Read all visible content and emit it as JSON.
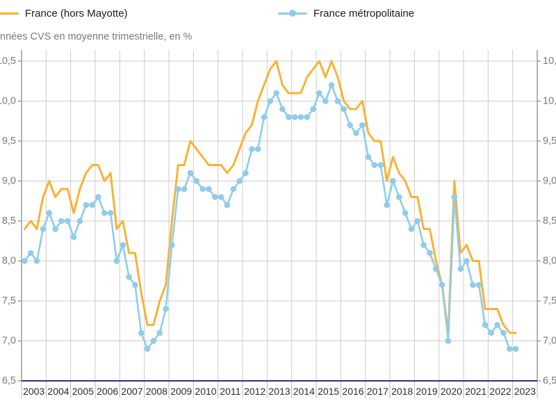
{
  "legend": {
    "items": [
      {
        "label": "France (hors Mayotte)",
        "color": "#F9B233",
        "marker": "line"
      },
      {
        "label": "France métropolitaine",
        "color": "#8ECDEB",
        "marker": "line-dot"
      }
    ]
  },
  "subtitle": "nnées CVS en moyenne trimestrielle, en %",
  "chart_data": {
    "type": "line",
    "title": "",
    "xlabel": "",
    "ylabel": "nnées CVS en moyenne trimestrielle, en %",
    "x_unit": "quarter",
    "period_start": "2003-Q1",
    "period_end": "2023-Q1",
    "categories": [
      "2003",
      "2004",
      "2005",
      "2006",
      "2007",
      "2008",
      "2009",
      "2010",
      "2011",
      "2012",
      "2013",
      "2014",
      "2015",
      "2016",
      "2017",
      "2018",
      "2019",
      "2020",
      "2021",
      "2022",
      "2023"
    ],
    "yaxis": {
      "min": 6.5,
      "max": 10.5,
      "step": 0.5,
      "decimal_separator": ",",
      "sides": "both"
    },
    "grid": true,
    "legend_position": "top",
    "colors": {
      "grid_line": "#cccccc",
      "axis_line": "#8c8c8c",
      "bottom_axis_line": "#2d3092",
      "year_separator": "#b5b5b5",
      "y_label_text": "#7a7a7a",
      "x_label_text": "#2b2b2b"
    },
    "series": [
      {
        "name": "France (hors Mayotte)",
        "color": "#F9B233",
        "style": "line",
        "line_width": 3,
        "values": [
          8.4,
          8.5,
          8.4,
          8.8,
          9.0,
          8.8,
          8.9,
          8.9,
          8.6,
          8.9,
          9.1,
          9.2,
          9.2,
          9.0,
          9.1,
          8.4,
          8.5,
          8.1,
          8.1,
          7.6,
          7.2,
          7.2,
          7.5,
          7.7,
          8.5,
          9.2,
          9.2,
          9.5,
          9.4,
          9.3,
          9.2,
          9.2,
          9.2,
          9.1,
          9.2,
          9.4,
          9.6,
          9.7,
          10.0,
          10.2,
          10.4,
          10.5,
          10.2,
          10.1,
          10.1,
          10.1,
          10.3,
          10.4,
          10.5,
          10.3,
          10.5,
          10.3,
          10.0,
          9.9,
          9.9,
          10.0,
          9.6,
          9.5,
          9.5,
          9.0,
          9.3,
          9.1,
          9.0,
          8.8,
          8.8,
          8.4,
          8.4,
          8.0,
          7.7,
          7.1,
          9.0,
          8.1,
          8.2,
          8.0,
          8.0,
          7.4,
          7.4,
          7.4,
          7.2,
          7.1,
          7.1
        ]
      },
      {
        "name": "France métropolitaine",
        "color": "#8ECDEB",
        "style": "line-markers",
        "line_width": 2.6,
        "marker_radius": 4.3,
        "values": [
          8.0,
          8.1,
          8.0,
          8.4,
          8.6,
          8.4,
          8.5,
          8.5,
          8.3,
          8.5,
          8.7,
          8.7,
          8.8,
          8.6,
          8.6,
          8.0,
          8.2,
          7.8,
          7.7,
          7.1,
          6.9,
          7.0,
          7.1,
          7.4,
          8.2,
          8.9,
          8.9,
          9.1,
          9.0,
          8.9,
          8.9,
          8.8,
          8.8,
          8.7,
          8.9,
          9.0,
          9.1,
          9.4,
          9.4,
          9.8,
          10.0,
          10.1,
          9.9,
          9.8,
          9.8,
          9.8,
          9.8,
          9.9,
          10.1,
          10.0,
          10.2,
          10.0,
          9.9,
          9.7,
          9.6,
          9.7,
          9.3,
          9.2,
          9.2,
          8.7,
          9.0,
          8.8,
          8.6,
          8.4,
          8.5,
          8.2,
          8.1,
          7.9,
          7.7,
          7.0,
          8.8,
          7.9,
          8.0,
          7.7,
          7.7,
          7.2,
          7.1,
          7.2,
          7.1,
          6.9,
          6.9
        ]
      }
    ]
  }
}
